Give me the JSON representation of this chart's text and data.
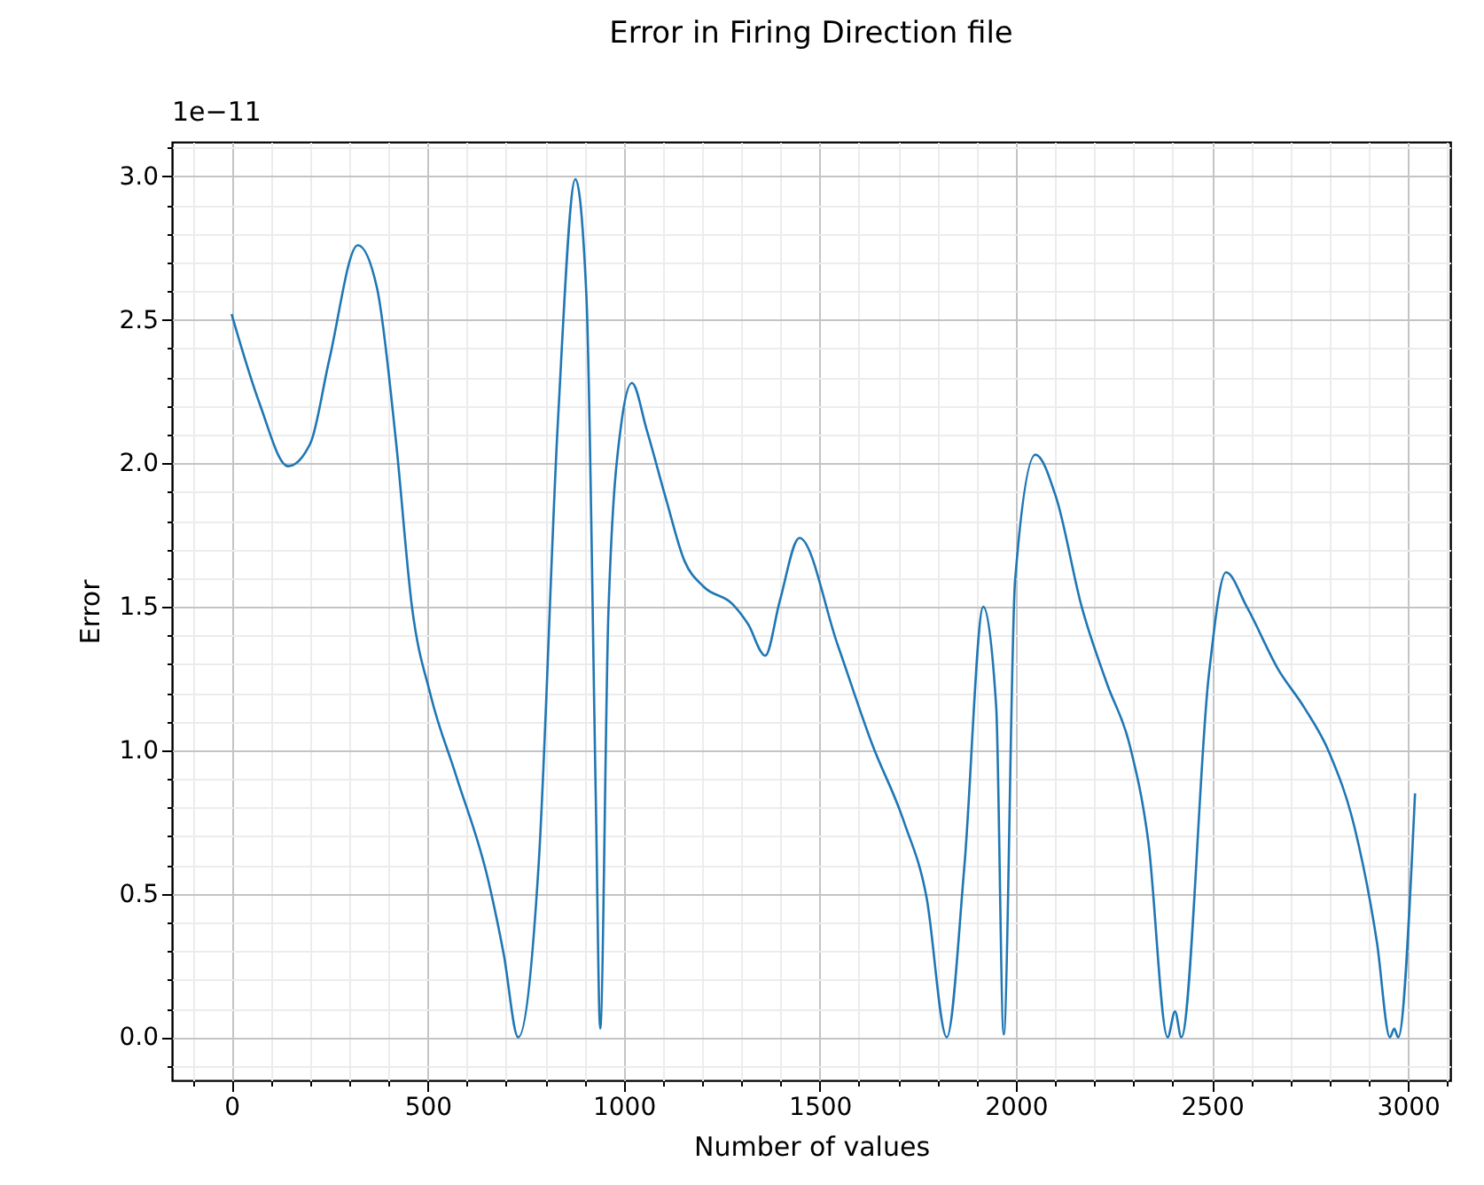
{
  "chart_data": {
    "type": "line",
    "title": "Error in Firing Direction file",
    "xlabel": "Number of values",
    "ylabel": "Error",
    "annotations": [
      "1e−11"
    ],
    "x": [
      0,
      71,
      144,
      201,
      249,
      322,
      371,
      419,
      460,
      508,
      573,
      654,
      694,
      731,
      783,
      832,
      877,
      905,
      929,
      940,
      961,
      994,
      1021,
      1058,
      1107,
      1155,
      1204,
      1277,
      1317,
      1361,
      1398,
      1448,
      1545,
      1634,
      1715,
      1772,
      1824,
      1869,
      1917,
      1950,
      1969,
      1998,
      2050,
      2103,
      2168,
      2233,
      2290,
      2338,
      2387,
      2406,
      2422,
      2492,
      2536,
      2589,
      2670,
      2735,
      2800,
      2864,
      2921,
      2954,
      2965,
      2975,
      3018
    ],
    "series": [
      {
        "color": "#1f77b4",
        "values": [
          2.52,
          2.21,
          1.99,
          2.07,
          2.36,
          2.76,
          2.61,
          2.08,
          1.5,
          1.19,
          0.91,
          0.55,
          0.29,
          0.0,
          0.6,
          2.14,
          2.99,
          2.58,
          0.82,
          0.03,
          1.48,
          2.14,
          2.28,
          2.12,
          1.88,
          1.66,
          1.57,
          1.51,
          1.44,
          1.33,
          1.52,
          1.74,
          1.37,
          1.02,
          0.75,
          0.49,
          0.0,
          0.6,
          1.5,
          1.15,
          0.01,
          1.59,
          2.03,
          1.88,
          1.5,
          1.23,
          1.02,
          0.68,
          0.0,
          0.09,
          0.0,
          1.26,
          1.62,
          1.5,
          1.28,
          1.15,
          0.99,
          0.73,
          0.33,
          0.0,
          0.03,
          0.0,
          0.85
        ]
      }
    ],
    "xlim": [
      -152,
      3108
    ],
    "ylim": [
      -0.15,
      3.12
    ],
    "xticks": [
      {
        "value": -100,
        "label": null
      },
      0,
      {
        "value": 100,
        "label": null
      },
      {
        "value": 200,
        "label": null
      },
      {
        "value": 300,
        "label": null
      },
      {
        "value": 400,
        "label": null
      },
      500,
      {
        "value": 600,
        "label": null
      },
      {
        "value": 700,
        "label": null
      },
      {
        "value": 800,
        "label": null
      },
      {
        "value": 900,
        "label": null
      },
      1000,
      {
        "value": 1100,
        "label": null
      },
      {
        "value": 1200,
        "label": null
      },
      {
        "value": 1300,
        "label": null
      },
      {
        "value": 1400,
        "label": null
      },
      1500,
      {
        "value": 1600,
        "label": null
      },
      {
        "value": 1700,
        "label": null
      },
      {
        "value": 1800,
        "label": null
      },
      {
        "value": 1900,
        "label": null
      },
      2000,
      {
        "value": 2100,
        "label": null
      },
      {
        "value": 2200,
        "label": null
      },
      {
        "value": 2300,
        "label": null
      },
      {
        "value": 2400,
        "label": null
      },
      2500,
      {
        "value": 2600,
        "label": null
      },
      {
        "value": 2700,
        "label": null
      },
      {
        "value": 2800,
        "label": null
      },
      {
        "value": 2900,
        "label": null
      },
      3000,
      {
        "value": 3100,
        "label": null
      }
    ],
    "yticks": [
      {
        "value": -0.1,
        "label": null
      },
      {
        "value": 0,
        "label": "0.0"
      },
      {
        "value": 0.1,
        "label": null
      },
      {
        "value": 0.2,
        "label": null
      },
      {
        "value": 0.3,
        "label": null
      },
      {
        "value": 0.4,
        "label": null
      },
      0.5,
      {
        "value": 0.6,
        "label": null
      },
      {
        "value": 0.7,
        "label": null
      },
      {
        "value": 0.8,
        "label": null
      },
      {
        "value": 0.9,
        "label": null
      },
      {
        "value": 1,
        "label": "1.0"
      },
      {
        "value": 1.1,
        "label": null
      },
      {
        "value": 1.2,
        "label": null
      },
      {
        "value": 1.3,
        "label": null
      },
      {
        "value": 1.4,
        "label": null
      },
      1.5,
      {
        "value": 1.6,
        "label": null
      },
      {
        "value": 1.7,
        "label": null
      },
      {
        "value": 1.8,
        "label": null
      },
      {
        "value": 1.9,
        "label": null
      },
      {
        "value": 2,
        "label": "2.0"
      },
      {
        "value": 2.1,
        "label": null
      },
      {
        "value": 2.2,
        "label": null
      },
      {
        "value": 2.3,
        "label": null
      },
      {
        "value": 2.4,
        "label": null
      },
      2.5,
      {
        "value": 2.6,
        "label": null
      },
      {
        "value": 2.7,
        "label": null
      },
      {
        "value": 2.8,
        "label": null
      },
      {
        "value": 2.9,
        "label": null
      },
      {
        "value": 3,
        "label": "3.0"
      },
      {
        "value": 3.1,
        "label": null
      }
    ],
    "grid": true,
    "marker": "none",
    "line_style": "solid"
  }
}
